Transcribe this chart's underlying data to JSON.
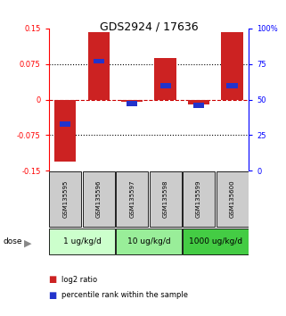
{
  "title": "GDS2924 / 17636",
  "samples": [
    "GSM135595",
    "GSM135596",
    "GSM135597",
    "GSM135598",
    "GSM135599",
    "GSM135600"
  ],
  "log2_ratio": [
    -0.13,
    0.143,
    -0.005,
    0.087,
    -0.01,
    0.143
  ],
  "percentile_rank": [
    33,
    77,
    47,
    60,
    46,
    60
  ],
  "dose_groups": [
    {
      "label": "1 ug/kg/d",
      "samples": [
        0,
        1
      ]
    },
    {
      "label": "10 ug/kg/d",
      "samples": [
        2,
        3
      ]
    },
    {
      "label": "1000 ug/kg/d",
      "samples": [
        4,
        5
      ]
    }
  ],
  "ylim": [
    -0.15,
    0.15
  ],
  "yticks_left": [
    -0.15,
    -0.075,
    0,
    0.075,
    0.15
  ],
  "yticks_right": [
    0,
    25,
    50,
    75,
    100
  ],
  "bar_color_red": "#cc2222",
  "bar_color_blue": "#2233cc",
  "bar_width": 0.65,
  "zero_line_color": "#cc0000",
  "sample_bg_color": "#cccccc",
  "dose_colors": [
    "#ccffcc",
    "#99ee99",
    "#44cc44"
  ],
  "legend_red_label": "log2 ratio",
  "legend_blue_label": "percentile rank within the sample",
  "title_fontsize": 9,
  "tick_fontsize": 6,
  "sample_fontsize": 5,
  "dose_fontsize": 6.5
}
